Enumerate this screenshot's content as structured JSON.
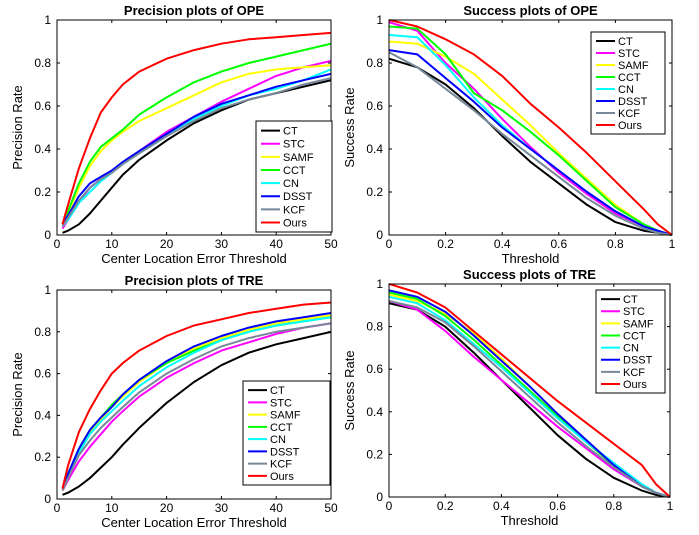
{
  "chart_data": [
    {
      "type": "line",
      "title": "Precision plots of OPE",
      "xlabel": "Center Location Error Threshold",
      "ylabel": "Precision Rate",
      "xlim": [
        0,
        50
      ],
      "ylim": [
        0,
        1
      ],
      "xticks": [
        0,
        10,
        20,
        30,
        40,
        50
      ],
      "yticks": [
        0,
        0.2,
        0.4,
        0.6,
        0.8,
        1
      ],
      "grid": false,
      "legend_position": "bottom-right",
      "x": [
        1,
        2,
        4,
        6,
        8,
        10,
        12,
        15,
        20,
        25,
        30,
        35,
        40,
        45,
        50
      ],
      "series": [
        {
          "name": "CT",
          "color": "#000000",
          "values": [
            0.01,
            0.02,
            0.05,
            0.1,
            0.16,
            0.22,
            0.28,
            0.35,
            0.44,
            0.52,
            0.58,
            0.63,
            0.66,
            0.69,
            0.72
          ]
        },
        {
          "name": "STC",
          "color": "#ff00ff",
          "values": [
            0.03,
            0.07,
            0.15,
            0.22,
            0.26,
            0.29,
            0.33,
            0.39,
            0.48,
            0.55,
            0.62,
            0.68,
            0.74,
            0.78,
            0.81
          ]
        },
        {
          "name": "SAMF",
          "color": "#ffff00",
          "values": [
            0.05,
            0.1,
            0.22,
            0.32,
            0.39,
            0.44,
            0.48,
            0.53,
            0.59,
            0.65,
            0.71,
            0.75,
            0.77,
            0.78,
            0.79
          ]
        },
        {
          "name": "CCT",
          "color": "#00ff00",
          "values": [
            0.05,
            0.11,
            0.24,
            0.34,
            0.41,
            0.45,
            0.49,
            0.56,
            0.64,
            0.71,
            0.76,
            0.8,
            0.83,
            0.86,
            0.89
          ]
        },
        {
          "name": "CN",
          "color": "#00ffff",
          "values": [
            0.04,
            0.07,
            0.15,
            0.2,
            0.25,
            0.29,
            0.33,
            0.38,
            0.46,
            0.54,
            0.6,
            0.65,
            0.68,
            0.72,
            0.77
          ]
        },
        {
          "name": "DSST",
          "color": "#0000ff",
          "values": [
            0.05,
            0.09,
            0.18,
            0.24,
            0.27,
            0.3,
            0.34,
            0.39,
            0.47,
            0.55,
            0.61,
            0.65,
            0.69,
            0.72,
            0.75
          ]
        },
        {
          "name": "KCF",
          "color": "#778899",
          "values": [
            0.04,
            0.08,
            0.16,
            0.22,
            0.26,
            0.29,
            0.33,
            0.38,
            0.46,
            0.53,
            0.59,
            0.63,
            0.66,
            0.7,
            0.73
          ]
        },
        {
          "name": "Ours",
          "color": "#ff0000",
          "values": [
            0.05,
            0.14,
            0.31,
            0.45,
            0.57,
            0.64,
            0.7,
            0.76,
            0.82,
            0.86,
            0.89,
            0.91,
            0.92,
            0.93,
            0.94
          ]
        }
      ]
    },
    {
      "type": "line",
      "title": "Success plots of OPE",
      "xlabel": "Threshold",
      "ylabel": "Success Rate",
      "xlim": [
        0,
        1
      ],
      "ylim": [
        0,
        1
      ],
      "xticks": [
        0,
        0.2,
        0.4,
        0.6,
        0.8,
        1
      ],
      "yticks": [
        0,
        0.2,
        0.4,
        0.6,
        0.8,
        1
      ],
      "grid": false,
      "legend_position": "top-right",
      "x": [
        0,
        0.1,
        0.2,
        0.3,
        0.4,
        0.5,
        0.6,
        0.7,
        0.8,
        0.9,
        0.95,
        1.0
      ],
      "series": [
        {
          "name": "CT",
          "color": "#000000",
          "values": [
            0.82,
            0.78,
            0.7,
            0.59,
            0.46,
            0.34,
            0.24,
            0.14,
            0.06,
            0.02,
            0.01,
            0.0
          ]
        },
        {
          "name": "STC",
          "color": "#ff00ff",
          "values": [
            0.99,
            0.95,
            0.8,
            0.68,
            0.54,
            0.41,
            0.29,
            0.19,
            0.1,
            0.04,
            0.02,
            0.0
          ]
        },
        {
          "name": "SAMF",
          "color": "#ffff00",
          "values": [
            0.9,
            0.89,
            0.83,
            0.75,
            0.63,
            0.51,
            0.38,
            0.26,
            0.14,
            0.05,
            0.02,
            0.0
          ]
        },
        {
          "name": "CCT",
          "color": "#00ff00",
          "values": [
            0.97,
            0.96,
            0.84,
            0.66,
            0.58,
            0.48,
            0.37,
            0.25,
            0.13,
            0.05,
            0.02,
            0.0
          ]
        },
        {
          "name": "CN",
          "color": "#00ffff",
          "values": [
            0.93,
            0.92,
            0.79,
            0.64,
            0.51,
            0.4,
            0.3,
            0.2,
            0.11,
            0.04,
            0.02,
            0.0
          ]
        },
        {
          "name": "DSST",
          "color": "#0000ff",
          "values": [
            0.86,
            0.84,
            0.73,
            0.62,
            0.5,
            0.4,
            0.3,
            0.2,
            0.11,
            0.04,
            0.02,
            0.0
          ]
        },
        {
          "name": "KCF",
          "color": "#778899",
          "values": [
            0.85,
            0.78,
            0.68,
            0.58,
            0.47,
            0.37,
            0.27,
            0.17,
            0.09,
            0.03,
            0.01,
            0.0
          ]
        },
        {
          "name": "Ours",
          "color": "#ff0000",
          "values": [
            1.0,
            0.97,
            0.91,
            0.84,
            0.74,
            0.61,
            0.5,
            0.38,
            0.25,
            0.12,
            0.05,
            0.0
          ]
        }
      ]
    },
    {
      "type": "line",
      "title": "Precision plots of TRE",
      "xlabel": "Center Location Error Threshold",
      "ylabel": "Precision Rate",
      "xlim": [
        0,
        50
      ],
      "ylim": [
        0,
        1
      ],
      "xticks": [
        0,
        10,
        20,
        30,
        40,
        50
      ],
      "yticks": [
        0,
        0.2,
        0.4,
        0.6,
        0.8,
        1
      ],
      "grid": false,
      "legend_position": "bottom-right",
      "x": [
        1,
        2,
        4,
        6,
        8,
        10,
        12,
        15,
        20,
        25,
        30,
        35,
        40,
        45,
        50
      ],
      "series": [
        {
          "name": "CT",
          "color": "#000000",
          "values": [
            0.02,
            0.03,
            0.06,
            0.1,
            0.15,
            0.2,
            0.26,
            0.34,
            0.46,
            0.56,
            0.64,
            0.7,
            0.74,
            0.77,
            0.8
          ]
        },
        {
          "name": "STC",
          "color": "#ff00ff",
          "values": [
            0.04,
            0.09,
            0.18,
            0.25,
            0.31,
            0.37,
            0.42,
            0.49,
            0.58,
            0.65,
            0.71,
            0.75,
            0.79,
            0.82,
            0.84
          ]
        },
        {
          "name": "SAMF",
          "color": "#ffff00",
          "values": [
            0.05,
            0.12,
            0.24,
            0.32,
            0.38,
            0.44,
            0.49,
            0.56,
            0.65,
            0.72,
            0.77,
            0.81,
            0.84,
            0.86,
            0.88
          ]
        },
        {
          "name": "CCT",
          "color": "#00ff00",
          "values": [
            0.05,
            0.12,
            0.24,
            0.33,
            0.39,
            0.45,
            0.5,
            0.57,
            0.65,
            0.71,
            0.76,
            0.8,
            0.83,
            0.85,
            0.87
          ]
        },
        {
          "name": "CN",
          "color": "#00ffff",
          "values": [
            0.05,
            0.11,
            0.22,
            0.31,
            0.37,
            0.42,
            0.47,
            0.54,
            0.63,
            0.7,
            0.76,
            0.8,
            0.83,
            0.85,
            0.87
          ]
        },
        {
          "name": "DSST",
          "color": "#0000ff",
          "values": [
            0.05,
            0.12,
            0.24,
            0.33,
            0.39,
            0.44,
            0.5,
            0.57,
            0.66,
            0.73,
            0.78,
            0.82,
            0.85,
            0.87,
            0.89
          ]
        },
        {
          "name": "KCF",
          "color": "#778899",
          "values": [
            0.04,
            0.1,
            0.21,
            0.28,
            0.34,
            0.39,
            0.44,
            0.51,
            0.6,
            0.67,
            0.73,
            0.77,
            0.8,
            0.82,
            0.84
          ]
        },
        {
          "name": "Ours",
          "color": "#ff0000",
          "values": [
            0.05,
            0.16,
            0.32,
            0.43,
            0.52,
            0.6,
            0.65,
            0.71,
            0.78,
            0.83,
            0.86,
            0.89,
            0.91,
            0.93,
            0.94
          ]
        }
      ]
    },
    {
      "type": "line",
      "title": "Success plots of TRE",
      "xlabel": "Threshold",
      "ylabel": "Success Rate",
      "xlim": [
        0,
        1
      ],
      "ylim": [
        0,
        1
      ],
      "xticks": [
        0,
        0.2,
        0.4,
        0.6,
        0.8,
        1
      ],
      "yticks": [
        0,
        0.2,
        0.4,
        0.6,
        0.8,
        1
      ],
      "grid": false,
      "legend_position": "top-right",
      "x": [
        0,
        0.1,
        0.2,
        0.3,
        0.4,
        0.5,
        0.6,
        0.7,
        0.8,
        0.9,
        0.95,
        1.0
      ],
      "series": [
        {
          "name": "CT",
          "color": "#000000",
          "values": [
            0.91,
            0.88,
            0.8,
            0.68,
            0.55,
            0.42,
            0.29,
            0.18,
            0.09,
            0.03,
            0.01,
            0.0
          ]
        },
        {
          "name": "STC",
          "color": "#ff00ff",
          "values": [
            0.92,
            0.88,
            0.78,
            0.66,
            0.55,
            0.44,
            0.33,
            0.23,
            0.13,
            0.05,
            0.02,
            0.0
          ]
        },
        {
          "name": "SAMF",
          "color": "#ffff00",
          "values": [
            0.95,
            0.92,
            0.86,
            0.77,
            0.65,
            0.52,
            0.39,
            0.27,
            0.15,
            0.05,
            0.02,
            0.0
          ]
        },
        {
          "name": "CCT",
          "color": "#00ff00",
          "values": [
            0.96,
            0.93,
            0.85,
            0.74,
            0.62,
            0.5,
            0.38,
            0.26,
            0.15,
            0.05,
            0.02,
            0.0
          ]
        },
        {
          "name": "CN",
          "color": "#00ffff",
          "values": [
            0.94,
            0.91,
            0.83,
            0.72,
            0.61,
            0.49,
            0.37,
            0.26,
            0.16,
            0.06,
            0.02,
            0.0
          ]
        },
        {
          "name": "DSST",
          "color": "#0000ff",
          "values": [
            0.97,
            0.94,
            0.87,
            0.76,
            0.64,
            0.52,
            0.39,
            0.27,
            0.15,
            0.05,
            0.02,
            0.0
          ]
        },
        {
          "name": "KCF",
          "color": "#778899",
          "values": [
            0.92,
            0.89,
            0.82,
            0.71,
            0.59,
            0.47,
            0.35,
            0.24,
            0.14,
            0.05,
            0.02,
            0.0
          ]
        },
        {
          "name": "Ours",
          "color": "#ff0000",
          "values": [
            1.0,
            0.96,
            0.89,
            0.78,
            0.67,
            0.56,
            0.45,
            0.35,
            0.25,
            0.15,
            0.06,
            0.0
          ]
        }
      ]
    }
  ]
}
